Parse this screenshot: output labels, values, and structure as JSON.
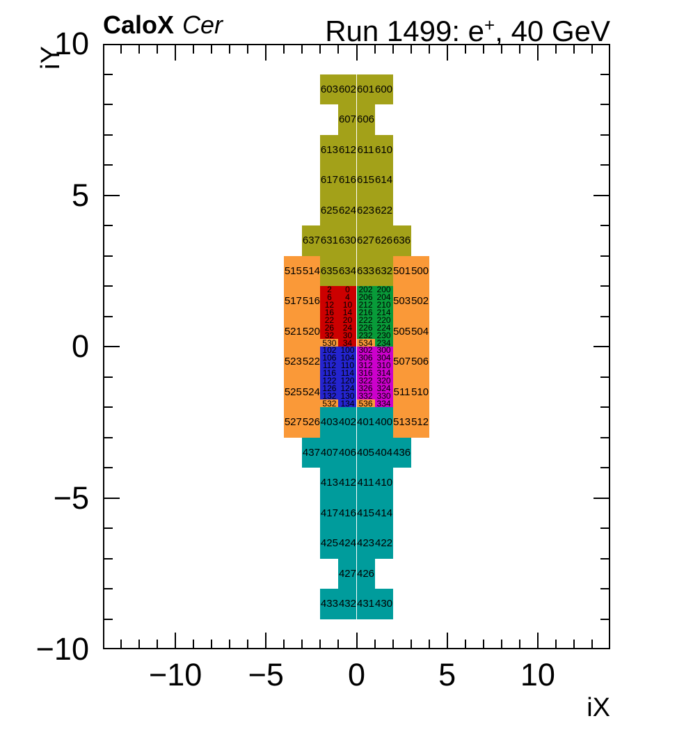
{
  "title": {
    "experiment": "CaloX",
    "detector": "Cer",
    "run_prefix": "Run 1499: e",
    "run_sup": "+",
    "run_suffix": ", 40 GeV"
  },
  "axes": {
    "x": {
      "title": "iX",
      "min": -14,
      "max": 14,
      "tick_values": [
        -10,
        -5,
        0,
        5,
        10
      ],
      "tick_labels": [
        "−10",
        "−5",
        "0",
        "5",
        "10"
      ]
    },
    "y": {
      "title": "iY",
      "min": -10,
      "max": 10,
      "tick_values": [
        10,
        5,
        0,
        -5,
        -10
      ],
      "tick_labels": [
        "10",
        "5",
        "0",
        "−5",
        "−10"
      ]
    }
  },
  "colors": {
    "olive": "#a3a119",
    "orange": "#fa9938",
    "red": "#cc0000",
    "green": "#089b39",
    "blue": "#2424cf",
    "magenta": "#cc00cc",
    "teal": "#009c9c"
  },
  "chart_data": {
    "type": "heatmap",
    "title": "CaloX Cer — Run 1499: e+, 40 GeV",
    "xlabel": "iX",
    "ylabel": "iY",
    "xlim": [
      -14,
      14
    ],
    "ylim": [
      -10,
      10
    ],
    "grid": false,
    "cell_unit_w": 1,
    "cell_groups": [
      {
        "c": "olive",
        "y": 9,
        "x": -2,
        "h": 1,
        "cells": [
          "603",
          "602",
          "601",
          "600"
        ]
      },
      {
        "c": "olive",
        "y": 8,
        "x": -1,
        "h": 1,
        "cells": [
          "607",
          "606"
        ]
      },
      {
        "c": "olive",
        "y": 7,
        "x": -2,
        "h": 1,
        "cells": [
          "613",
          "612",
          "611",
          "610"
        ]
      },
      {
        "c": "olive",
        "y": 6,
        "x": -2,
        "h": 1,
        "cells": [
          "617",
          "616",
          "615",
          "614"
        ]
      },
      {
        "c": "olive",
        "y": 5,
        "x": -2,
        "h": 1,
        "cells": [
          "625",
          "624",
          "623",
          "622"
        ]
      },
      {
        "c": "olive",
        "y": 4,
        "x": -3,
        "h": 1,
        "cells": [
          "637",
          "631",
          "630",
          "627",
          "626",
          "636"
        ]
      },
      {
        "c": "olive",
        "y": 3,
        "x": -2,
        "h": 1,
        "cells": [
          "635",
          "634",
          "633",
          "632"
        ]
      },
      {
        "c": "orange",
        "y": 3,
        "x": -4,
        "h": 1,
        "cells": [
          "515",
          "514"
        ]
      },
      {
        "c": "orange",
        "y": 2,
        "x": -4,
        "h": 1,
        "cells": [
          "517",
          "516"
        ]
      },
      {
        "c": "orange",
        "y": 1,
        "x": -4,
        "h": 1,
        "cells": [
          "521",
          "520"
        ]
      },
      {
        "c": "orange",
        "y": 0,
        "x": -4,
        "h": 1,
        "cells": [
          "523",
          "522"
        ]
      },
      {
        "c": "orange",
        "y": -1,
        "x": -4,
        "h": 1,
        "cells": [
          "525",
          "524"
        ]
      },
      {
        "c": "orange",
        "y": -2,
        "x": -4,
        "h": 1,
        "cells": [
          "527",
          "526"
        ]
      },
      {
        "c": "orange",
        "y": 3,
        "x": 2,
        "h": 1,
        "cells": [
          "501",
          "500"
        ]
      },
      {
        "c": "orange",
        "y": 2,
        "x": 2,
        "h": 1,
        "cells": [
          "503",
          "502"
        ]
      },
      {
        "c": "orange",
        "y": 1,
        "x": 2,
        "h": 1,
        "cells": [
          "505",
          "504"
        ]
      },
      {
        "c": "orange",
        "y": 0,
        "x": 2,
        "h": 1,
        "cells": [
          "507",
          "506"
        ]
      },
      {
        "c": "orange",
        "y": -1,
        "x": 2,
        "h": 1,
        "cells": [
          "511",
          "510"
        ]
      },
      {
        "c": "orange",
        "y": -2,
        "x": 2,
        "h": 1,
        "cells": [
          "513",
          "512"
        ]
      },
      {
        "c": "red",
        "y": 2,
        "x": -2,
        "h": 0.25,
        "cells": [
          "2",
          "0"
        ]
      },
      {
        "c": "red",
        "y": 1.75,
        "x": -2,
        "h": 0.25,
        "cells": [
          "6",
          "4"
        ]
      },
      {
        "c": "red",
        "y": 1.5,
        "x": -2,
        "h": 0.25,
        "cells": [
          "12",
          "10"
        ]
      },
      {
        "c": "red",
        "y": 1.25,
        "x": -2,
        "h": 0.25,
        "cells": [
          "16",
          "14"
        ]
      },
      {
        "c": "red",
        "y": 1,
        "x": -2,
        "h": 0.25,
        "cells": [
          "22",
          "20"
        ]
      },
      {
        "c": "red",
        "y": 0.75,
        "x": -2,
        "h": 0.25,
        "cells": [
          "26",
          "24"
        ]
      },
      {
        "c": "red",
        "y": 0.5,
        "x": -2,
        "h": 0.25,
        "cells": [
          "32",
          "30"
        ]
      },
      {
        "c": "red",
        "y": 0.25,
        "x": -2,
        "h": 0.25,
        "cells": [
          {
            "t": "530",
            "c": "orange"
          },
          "34"
        ]
      },
      {
        "c": "green",
        "y": 2,
        "x": 0,
        "h": 0.25,
        "cells": [
          "202",
          "200"
        ]
      },
      {
        "c": "green",
        "y": 1.75,
        "x": 0,
        "h": 0.25,
        "cells": [
          "206",
          "204"
        ]
      },
      {
        "c": "green",
        "y": 1.5,
        "x": 0,
        "h": 0.25,
        "cells": [
          "212",
          "210"
        ]
      },
      {
        "c": "green",
        "y": 1.25,
        "x": 0,
        "h": 0.25,
        "cells": [
          "216",
          "214"
        ]
      },
      {
        "c": "green",
        "y": 1,
        "x": 0,
        "h": 0.25,
        "cells": [
          "222",
          "220"
        ]
      },
      {
        "c": "green",
        "y": 0.75,
        "x": 0,
        "h": 0.25,
        "cells": [
          "226",
          "224"
        ]
      },
      {
        "c": "green",
        "y": 0.5,
        "x": 0,
        "h": 0.25,
        "cells": [
          "232",
          "230"
        ]
      },
      {
        "c": "green",
        "y": 0.25,
        "x": 0,
        "h": 0.25,
        "cells": [
          {
            "t": "534",
            "c": "orange"
          },
          "234"
        ]
      },
      {
        "c": "blue",
        "y": 0,
        "x": -2,
        "h": 0.25,
        "cells": [
          "102",
          "100"
        ]
      },
      {
        "c": "blue",
        "y": -0.25,
        "x": -2,
        "h": 0.25,
        "cells": [
          "106",
          "104"
        ]
      },
      {
        "c": "blue",
        "y": -0.5,
        "x": -2,
        "h": 0.25,
        "cells": [
          "112",
          "110"
        ]
      },
      {
        "c": "blue",
        "y": -0.75,
        "x": -2,
        "h": 0.25,
        "cells": [
          "116",
          "114"
        ]
      },
      {
        "c": "blue",
        "y": -1,
        "x": -2,
        "h": 0.25,
        "cells": [
          "122",
          "120"
        ]
      },
      {
        "c": "blue",
        "y": -1.25,
        "x": -2,
        "h": 0.25,
        "cells": [
          "126",
          "124"
        ]
      },
      {
        "c": "blue",
        "y": -1.5,
        "x": -2,
        "h": 0.25,
        "cells": [
          "132",
          "130"
        ]
      },
      {
        "c": "blue",
        "y": -1.75,
        "x": -2,
        "h": 0.25,
        "cells": [
          {
            "t": "532",
            "c": "orange"
          },
          "134"
        ]
      },
      {
        "c": "magenta",
        "y": 0,
        "x": 0,
        "h": 0.25,
        "cells": [
          "302",
          "300"
        ]
      },
      {
        "c": "magenta",
        "y": -0.25,
        "x": 0,
        "h": 0.25,
        "cells": [
          "306",
          "304"
        ]
      },
      {
        "c": "magenta",
        "y": -0.5,
        "x": 0,
        "h": 0.25,
        "cells": [
          "312",
          "310"
        ]
      },
      {
        "c": "magenta",
        "y": -0.75,
        "x": 0,
        "h": 0.25,
        "cells": [
          "316",
          "314"
        ]
      },
      {
        "c": "magenta",
        "y": -1,
        "x": 0,
        "h": 0.25,
        "cells": [
          "322",
          "320"
        ]
      },
      {
        "c": "magenta",
        "y": -1.25,
        "x": 0,
        "h": 0.25,
        "cells": [
          "326",
          "324"
        ]
      },
      {
        "c": "magenta",
        "y": -1.5,
        "x": 0,
        "h": 0.25,
        "cells": [
          "332",
          "330"
        ]
      },
      {
        "c": "magenta",
        "y": -1.75,
        "x": 0,
        "h": 0.25,
        "cells": [
          {
            "t": "536",
            "c": "orange"
          },
          "334"
        ]
      },
      {
        "c": "teal",
        "y": -2,
        "x": -2,
        "h": 1,
        "cells": [
          "403",
          "402",
          "401",
          "400"
        ]
      },
      {
        "c": "teal",
        "y": -3,
        "x": -3,
        "h": 1,
        "cells": [
          "437",
          "407",
          "406",
          "405",
          "404",
          "436"
        ]
      },
      {
        "c": "teal",
        "y": -4,
        "x": -2,
        "h": 1,
        "cells": [
          "413",
          "412",
          "411",
          "410"
        ]
      },
      {
        "c": "teal",
        "y": -5,
        "x": -2,
        "h": 1,
        "cells": [
          "417",
          "416",
          "415",
          "414"
        ]
      },
      {
        "c": "teal",
        "y": -6,
        "x": -2,
        "h": 1,
        "cells": [
          "425",
          "424",
          "423",
          "422"
        ]
      },
      {
        "c": "teal",
        "y": -7,
        "x": -1,
        "h": 1,
        "cells": [
          "427",
          "426"
        ]
      },
      {
        "c": "teal",
        "y": -8,
        "x": -2,
        "h": 1,
        "cells": [
          "433",
          "432",
          "431",
          "430"
        ]
      }
    ]
  }
}
